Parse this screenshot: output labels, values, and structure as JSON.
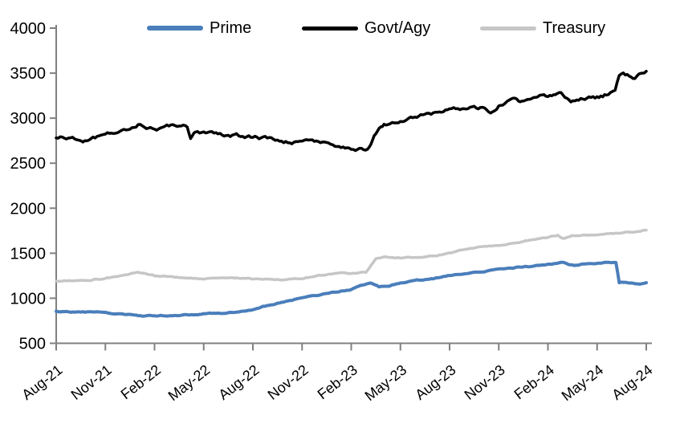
{
  "chart_data": {
    "type": "line",
    "title": "",
    "background": "#ffffff",
    "axis_color": "#808080",
    "label_color": "#000000",
    "grid": false,
    "legend": {
      "position": "top",
      "entries": [
        "Prime",
        "Govt/Agy",
        "Treasury"
      ]
    },
    "x_axis": {
      "unit": "month",
      "tick_labels": [
        "Aug-21",
        "Nov-21",
        "Feb-22",
        "May-22",
        "Aug-22",
        "Nov-22",
        "Feb-23",
        "May-23",
        "Aug-23",
        "Nov-23",
        "Feb-24",
        "May-24",
        "Aug-24"
      ],
      "tick_months": [
        0,
        3,
        6,
        9,
        12,
        15,
        18,
        21,
        24,
        27,
        30,
        33,
        36
      ],
      "label_rotation_deg": -38
    },
    "y_axis": {
      "min": 500,
      "max": 4000,
      "step": 500,
      "tick_values": [
        4000,
        3500,
        3000,
        2500,
        2000,
        1500,
        1000,
        500
      ]
    },
    "series": [
      {
        "name": "Prime",
        "slug": "prime",
        "color": "#4a7ebb",
        "line_width": 4,
        "wiggle": 4,
        "points": [
          [
            0,
            855
          ],
          [
            1,
            850
          ],
          [
            2,
            846
          ],
          [
            3,
            836
          ],
          [
            4,
            820
          ],
          [
            5,
            808
          ],
          [
            6,
            804
          ],
          [
            7,
            810
          ],
          [
            8,
            818
          ],
          [
            9,
            826
          ],
          [
            10,
            836
          ],
          [
            11,
            850
          ],
          [
            12,
            875
          ],
          [
            13,
            925
          ],
          [
            14,
            962
          ],
          [
            15,
            996
          ],
          [
            16,
            1035
          ],
          [
            17,
            1066
          ],
          [
            18,
            1100
          ],
          [
            18.8,
            1148
          ],
          [
            19.2,
            1170
          ],
          [
            19.7,
            1128
          ],
          [
            20.3,
            1140
          ],
          [
            21,
            1168
          ],
          [
            22,
            1200
          ],
          [
            23,
            1216
          ],
          [
            24,
            1258
          ],
          [
            25,
            1276
          ],
          [
            26,
            1292
          ],
          [
            27,
            1320
          ],
          [
            28,
            1340
          ],
          [
            29,
            1356
          ],
          [
            30,
            1380
          ],
          [
            31,
            1396
          ],
          [
            31.6,
            1362
          ],
          [
            32,
            1378
          ],
          [
            33,
            1392
          ],
          [
            34,
            1400
          ],
          [
            34.15,
            1400
          ],
          [
            34.35,
            1178
          ],
          [
            35,
            1172
          ],
          [
            35.6,
            1160
          ],
          [
            36,
            1168
          ]
        ]
      },
      {
        "name": "Govt/Agy",
        "slug": "govt-agy",
        "color": "#000000",
        "line_width": 3.5,
        "wiggle": 13,
        "points": [
          [
            0,
            2780
          ],
          [
            1,
            2792
          ],
          [
            2,
            2752
          ],
          [
            3,
            2802
          ],
          [
            4,
            2856
          ],
          [
            5,
            2940
          ],
          [
            6,
            2884
          ],
          [
            7,
            2906
          ],
          [
            8,
            2898
          ],
          [
            8.2,
            2782
          ],
          [
            8.5,
            2845
          ],
          [
            9,
            2838
          ],
          [
            10,
            2822
          ],
          [
            11,
            2806
          ],
          [
            12,
            2790
          ],
          [
            13,
            2768
          ],
          [
            14,
            2740
          ],
          [
            15,
            2722
          ],
          [
            16,
            2730
          ],
          [
            17,
            2692
          ],
          [
            18,
            2660
          ],
          [
            19,
            2652
          ],
          [
            19.3,
            2760
          ],
          [
            19.5,
            2830
          ],
          [
            19.8,
            2906
          ],
          [
            20,
            2930
          ],
          [
            21,
            2976
          ],
          [
            22,
            3006
          ],
          [
            23,
            3050
          ],
          [
            24,
            3096
          ],
          [
            25,
            3112
          ],
          [
            26,
            3105
          ],
          [
            26.5,
            3040
          ],
          [
            27,
            3140
          ],
          [
            28,
            3240
          ],
          [
            28.3,
            3186
          ],
          [
            29,
            3246
          ],
          [
            30,
            3252
          ],
          [
            30.8,
            3300
          ],
          [
            31.4,
            3198
          ],
          [
            32,
            3216
          ],
          [
            33,
            3232
          ],
          [
            33.8,
            3276
          ],
          [
            34.1,
            3280
          ],
          [
            34.35,
            3470
          ],
          [
            34.6,
            3490
          ],
          [
            35.2,
            3452
          ],
          [
            36,
            3520
          ]
        ]
      },
      {
        "name": "Treasury",
        "slug": "treasury",
        "color": "#c6c6c6",
        "line_width": 3.5,
        "wiggle": 4.5,
        "points": [
          [
            0,
            1190
          ],
          [
            1,
            1196
          ],
          [
            2,
            1206
          ],
          [
            3,
            1220
          ],
          [
            4,
            1246
          ],
          [
            5,
            1294
          ],
          [
            6,
            1248
          ],
          [
            7,
            1240
          ],
          [
            8,
            1230
          ],
          [
            9,
            1210
          ],
          [
            10,
            1216
          ],
          [
            11,
            1222
          ],
          [
            12,
            1212
          ],
          [
            13,
            1206
          ],
          [
            14,
            1204
          ],
          [
            15,
            1222
          ],
          [
            16,
            1258
          ],
          [
            17,
            1276
          ],
          [
            18,
            1280
          ],
          [
            18.9,
            1286
          ],
          [
            19.1,
            1330
          ],
          [
            19.5,
            1438
          ],
          [
            20,
            1450
          ],
          [
            21,
            1442
          ],
          [
            22,
            1456
          ],
          [
            23,
            1470
          ],
          [
            24,
            1500
          ],
          [
            25,
            1546
          ],
          [
            26,
            1572
          ],
          [
            27,
            1590
          ],
          [
            28,
            1618
          ],
          [
            29,
            1650
          ],
          [
            30,
            1680
          ],
          [
            30.6,
            1700
          ],
          [
            30.9,
            1662
          ],
          [
            31.5,
            1686
          ],
          [
            32,
            1690
          ],
          [
            33,
            1706
          ],
          [
            34,
            1722
          ],
          [
            35,
            1740
          ],
          [
            36,
            1758
          ]
        ]
      }
    ]
  }
}
